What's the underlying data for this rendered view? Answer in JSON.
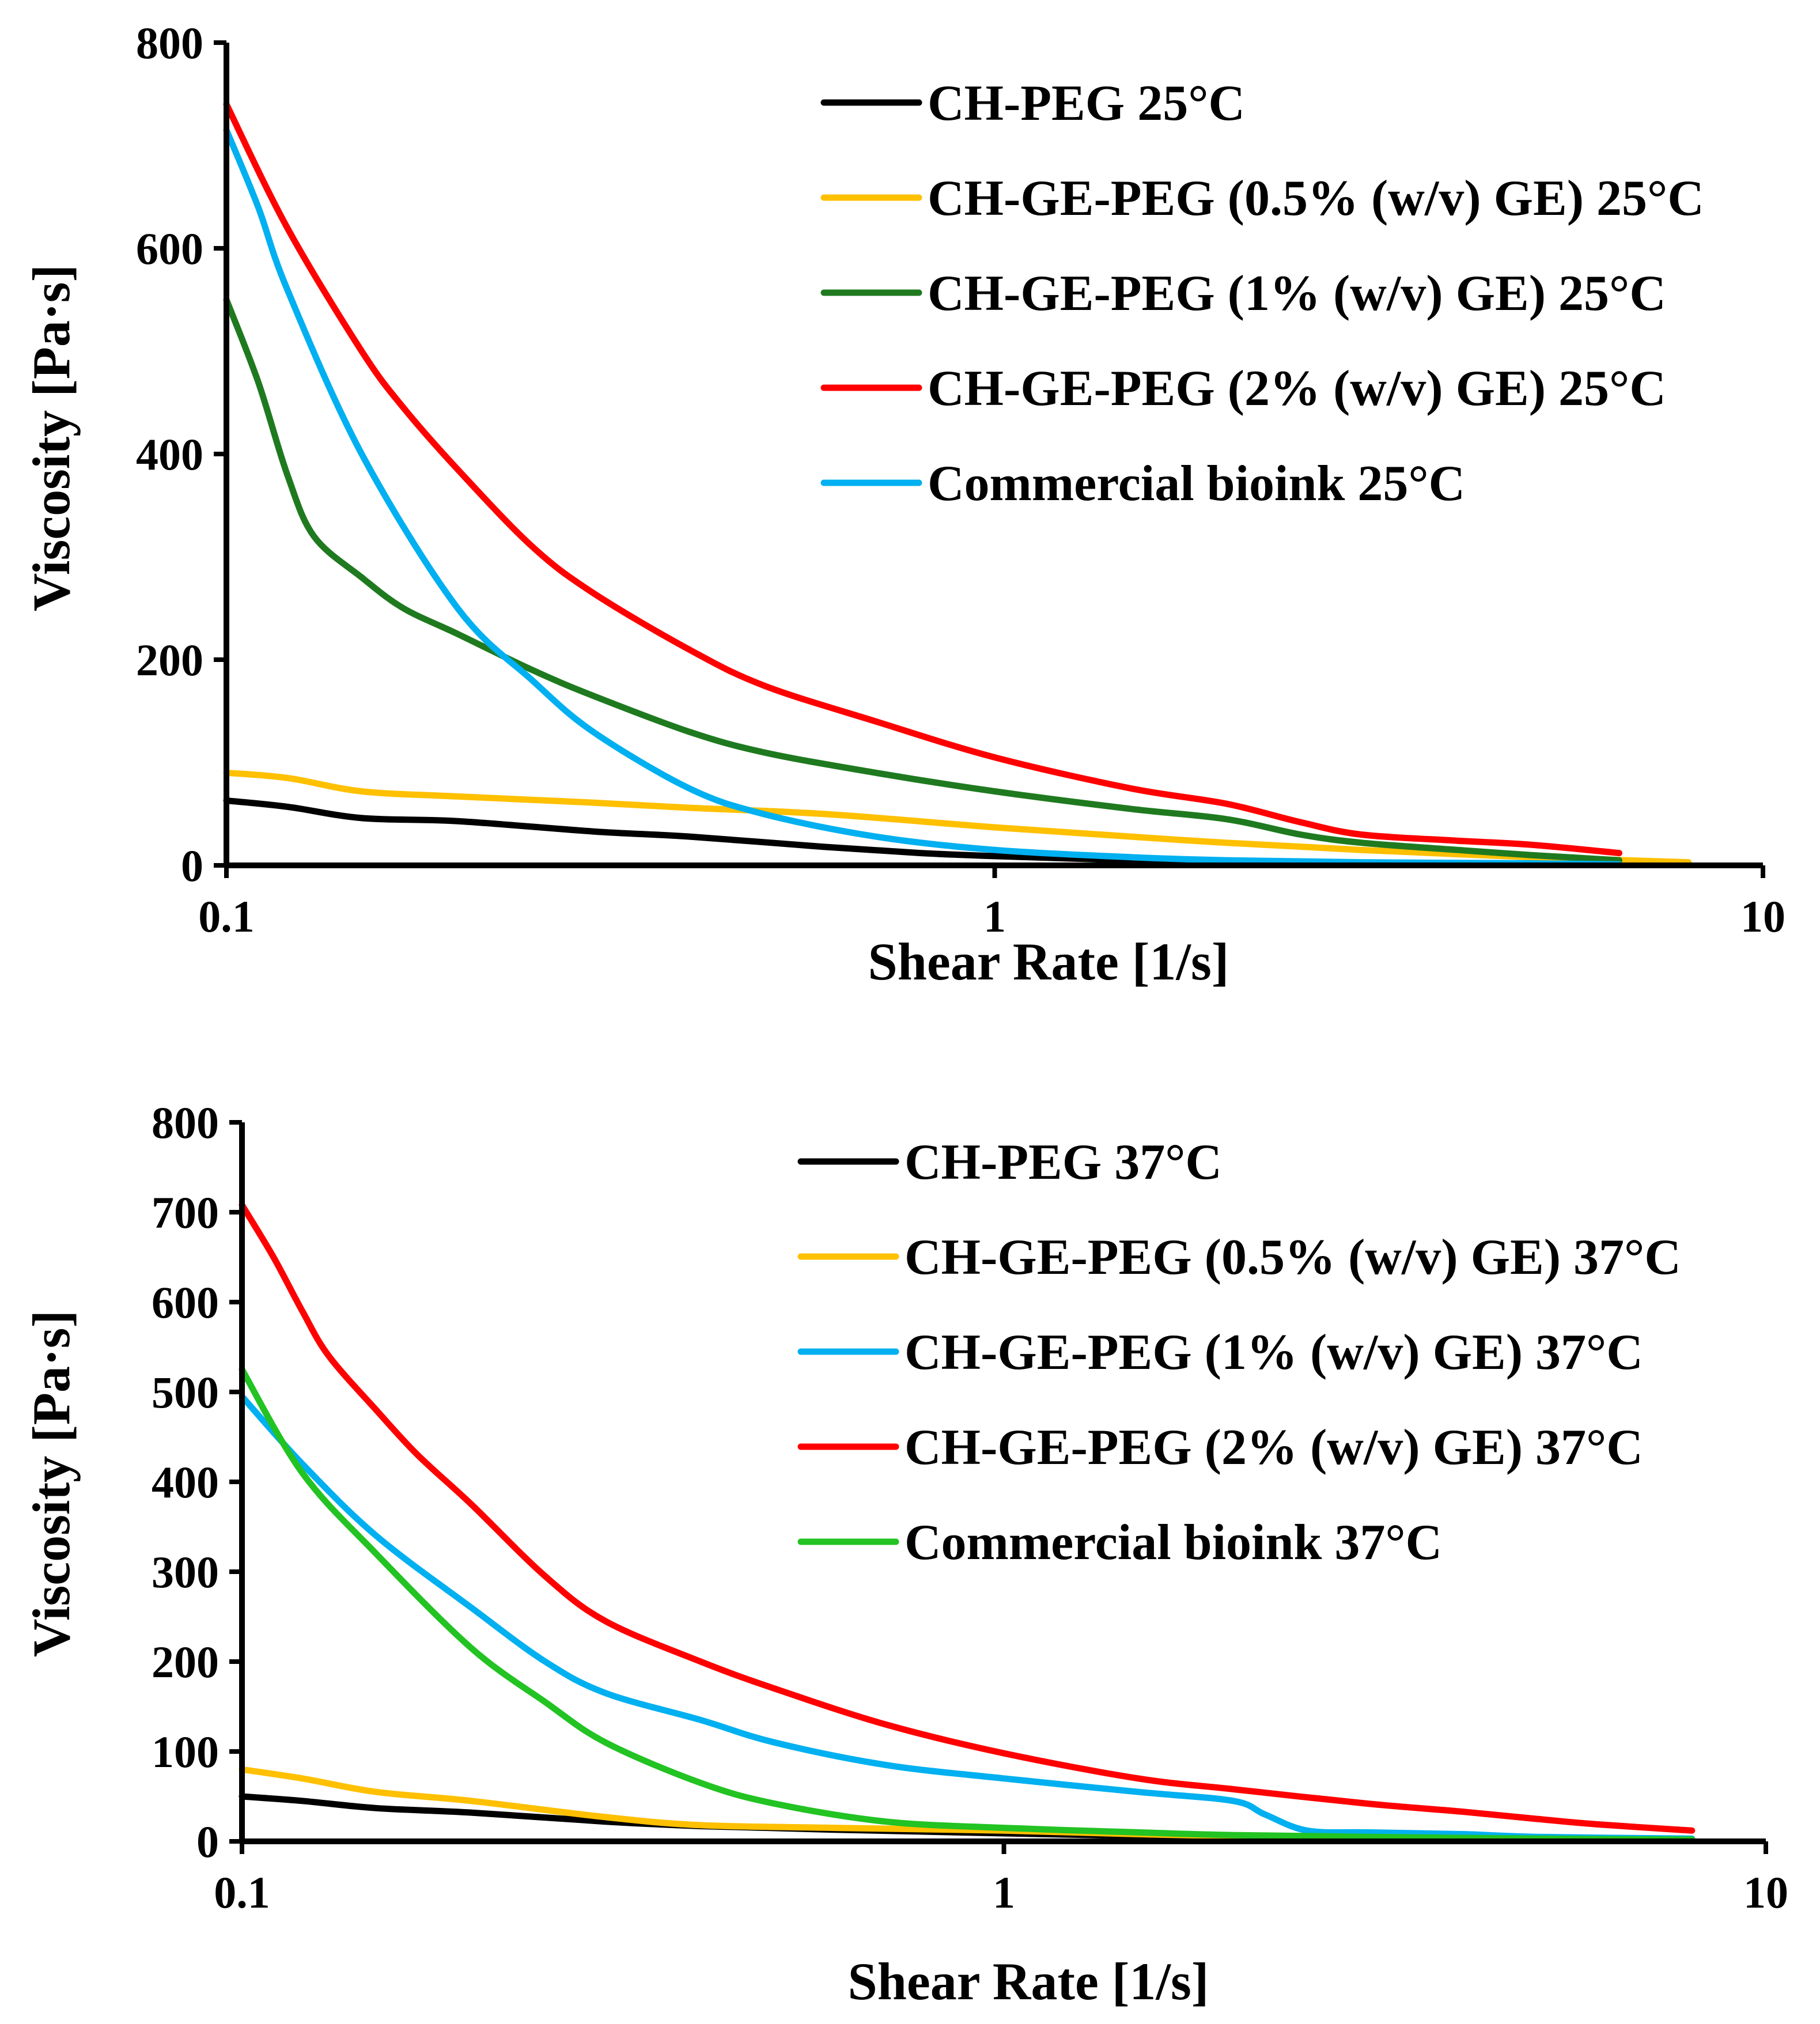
{
  "chart_data": [
    {
      "type": "line",
      "xscale": "log",
      "xlim": [
        0.1,
        10
      ],
      "ylim": [
        0,
        800
      ],
      "xlabel": "Shear Rate [1/s]",
      "ylabel": "Viscosity [Pa·s]",
      "xticks": [
        {
          "value": 0.1,
          "label": "0.1"
        },
        {
          "value": 1,
          "label": "1"
        },
        {
          "value": 10,
          "label": "10"
        }
      ],
      "yticks": [
        {
          "value": 0,
          "label": "0"
        },
        {
          "value": 200,
          "label": "200"
        },
        {
          "value": 400,
          "label": "400"
        },
        {
          "value": 600,
          "label": "600"
        },
        {
          "value": 800,
          "label": "800"
        }
      ],
      "legend_position": "top-right",
      "series": [
        {
          "name": "CH-PEG 25°C",
          "color": "#000000",
          "x": [
            0.1,
            0.12,
            0.15,
            0.2,
            0.3,
            0.4,
            0.6,
            0.8,
            1.0,
            1.5,
            2.0,
            3.0,
            5.0,
            8.0
          ],
          "y": [
            63,
            57,
            46,
            43,
            33,
            28,
            18,
            12,
            9,
            5,
            3,
            2,
            1,
            0.5
          ]
        },
        {
          "name": "CH-GE-PEG (0.5% (w/v) GE) 25°C",
          "color": "#FFC000",
          "x": [
            0.1,
            0.12,
            0.15,
            0.2,
            0.3,
            0.4,
            0.6,
            1.0,
            1.5,
            2.0,
            3.0,
            5.0,
            8.0
          ],
          "y": [
            90,
            85,
            72,
            67,
            61,
            56,
            50,
            37,
            28,
            22,
            15,
            8,
            3
          ]
        },
        {
          "name": "CH-GE-PEG (1% (w/v) GE) 25°C",
          "color": "#1F7A1F",
          "x": [
            0.1,
            0.11,
            0.12,
            0.13,
            0.15,
            0.17,
            0.2,
            0.25,
            0.3,
            0.4,
            0.5,
            0.7,
            1.0,
            1.5,
            2.0,
            2.5,
            3.0,
            4.0,
            5.0,
            6.5
          ],
          "y": [
            550,
            470,
            380,
            320,
            280,
            250,
            225,
            190,
            165,
            130,
            110,
            90,
            72,
            55,
            45,
            30,
            22,
            15,
            10,
            5
          ]
        },
        {
          "name": "CH-GE-PEG (2% (w/v) GE) 25°C",
          "color": "#FF0000",
          "x": [
            0.1,
            0.12,
            0.15,
            0.17,
            0.2,
            0.25,
            0.3,
            0.4,
            0.5,
            0.7,
            1.0,
            1.5,
            2.0,
            2.5,
            3.0,
            4.0,
            5.0,
            6.5
          ],
          "y": [
            740,
            620,
            500,
            445,
            385,
            310,
            265,
            210,
            175,
            140,
            105,
            75,
            60,
            42,
            30,
            24,
            20,
            12
          ]
        },
        {
          "name": "Commercial bioink 25°C",
          "color": "#00B0F0",
          "x": [
            0.1,
            0.11,
            0.12,
            0.15,
            0.2,
            0.25,
            0.3,
            0.4,
            0.5,
            0.7,
            1.0,
            1.5,
            2.0,
            3.0,
            5.0,
            6.5
          ],
          "y": [
            715,
            640,
            560,
            400,
            250,
            180,
            130,
            75,
            50,
            28,
            15,
            8,
            5,
            3,
            2,
            1
          ]
        }
      ]
    },
    {
      "type": "line",
      "xscale": "log",
      "xlim": [
        0.1,
        10
      ],
      "ylim": [
        0,
        800
      ],
      "xlabel": "Shear Rate [1/s]",
      "ylabel": "Viscosity [Pa·s]",
      "xticks": [
        {
          "value": 0.1,
          "label": "0.1"
        },
        {
          "value": 1,
          "label": "1"
        },
        {
          "value": 10,
          "label": "10"
        }
      ],
      "yticks": [
        {
          "value": 0,
          "label": "0"
        },
        {
          "value": 100,
          "label": "100"
        },
        {
          "value": 200,
          "label": "200"
        },
        {
          "value": 300,
          "label": "300"
        },
        {
          "value": 400,
          "label": "400"
        },
        {
          "value": 500,
          "label": "500"
        },
        {
          "value": 600,
          "label": "600"
        },
        {
          "value": 700,
          "label": "700"
        },
        {
          "value": 800,
          "label": "800"
        }
      ],
      "legend_position": "top-right",
      "series": [
        {
          "name": "CH-PEG 37°C",
          "color": "#000000",
          "x": [
            0.1,
            0.12,
            0.15,
            0.2,
            0.3,
            0.4,
            0.6,
            1.0,
            1.5,
            2.0,
            3.0,
            5.0,
            8.0
          ],
          "y": [
            50,
            45,
            37,
            32,
            22,
            17,
            13,
            9,
            6,
            4,
            3,
            2,
            1
          ]
        },
        {
          "name": "CH-GE-PEG (0.5% (w/v) GE) 37°C",
          "color": "#FFC000",
          "x": [
            0.1,
            0.12,
            0.15,
            0.2,
            0.3,
            0.4,
            0.6,
            1.0,
            1.5,
            2.0,
            3.0,
            5.0,
            8.0
          ],
          "y": [
            80,
            70,
            55,
            45,
            27,
            18,
            15,
            12,
            8,
            6,
            4,
            2,
            1
          ]
        },
        {
          "name": "CH-GE-PEG (1% (w/v) GE) 37°C",
          "color": "#00B0F0",
          "x": [
            0.1,
            0.12,
            0.15,
            0.2,
            0.25,
            0.3,
            0.4,
            0.5,
            0.7,
            1.0,
            1.5,
            2.0,
            2.2,
            2.5,
            3.0,
            4.0,
            5.0,
            8.0
          ],
          "y": [
            495,
            420,
            340,
            260,
            200,
            165,
            135,
            110,
            85,
            70,
            55,
            45,
            30,
            12,
            10,
            8,
            5,
            3
          ]
        },
        {
          "name": "CH-GE-PEG (2% (w/v) GE) 37°C",
          "color": "#FF0000",
          "x": [
            0.1,
            0.11,
            0.12,
            0.13,
            0.15,
            0.17,
            0.2,
            0.25,
            0.3,
            0.4,
            0.5,
            0.7,
            1.0,
            1.5,
            2.0,
            3.0,
            4.0,
            5.0,
            6.0,
            8.0
          ],
          "y": [
            708,
            650,
            590,
            540,
            480,
            430,
            375,
            295,
            245,
            200,
            170,
            130,
            98,
            70,
            58,
            42,
            33,
            25,
            19,
            12
          ]
        },
        {
          "name": "Commercial bioink 37°C",
          "color": "#22C322",
          "x": [
            0.1,
            0.12,
            0.15,
            0.2,
            0.25,
            0.3,
            0.4,
            0.5,
            0.7,
            1.0,
            1.5,
            2.0,
            3.0,
            5.0,
            8.0
          ],
          "y": [
            525,
            410,
            320,
            215,
            155,
            110,
            65,
            42,
            22,
            15,
            10,
            7,
            5,
            3,
            2
          ]
        }
      ]
    }
  ]
}
